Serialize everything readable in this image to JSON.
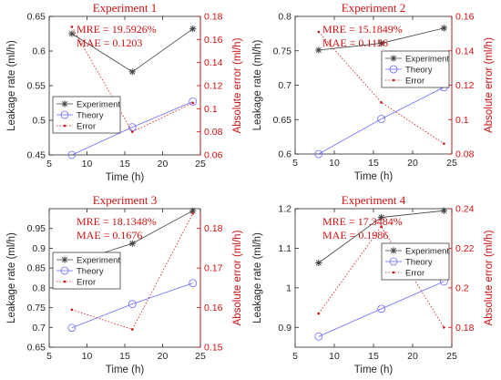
{
  "colors": {
    "experiment": "#404040",
    "theory": "#6a6aff",
    "error": "#d01010",
    "title": "#d01010",
    "axis": "#262626"
  },
  "chart_data": [
    {
      "type": "line",
      "title": "Experiment 1",
      "xlabel": "Time (h)",
      "ylabel": "Leakage rate (ml/h)",
      "y2label": "Absolute error (ml/h)",
      "x": [
        8,
        16,
        24
      ],
      "xlim": [
        5,
        25
      ],
      "xticks": [
        "5",
        "10",
        "15",
        "20",
        "25"
      ],
      "ylim": [
        0.45,
        0.65
      ],
      "yticks": [
        "0.45",
        "0.5",
        "0.55",
        "0.6",
        "0.65"
      ],
      "y2lim": [
        0.06,
        0.18
      ],
      "y2ticks": [
        "0.06",
        "0.08",
        "0.1",
        "0.12",
        "0.14",
        "0.16",
        "0.18"
      ],
      "series": [
        {
          "name": "Experiment",
          "axis": "left",
          "values": [
            0.625,
            0.57,
            0.632
          ]
        },
        {
          "name": "Theory",
          "axis": "left",
          "values": [
            0.45,
            0.49,
            0.527
          ]
        },
        {
          "name": "Error",
          "axis": "right",
          "values": [
            0.171,
            0.08,
            0.105
          ]
        }
      ],
      "annotations": {
        "mre": "MRE = 19.5926%",
        "mae": "MAE = 0.1203"
      },
      "legend": "bottom-left"
    },
    {
      "type": "line",
      "title": "Experiment 2",
      "xlabel": "Time (h)",
      "ylabel": "Leakage rate (ml/h)",
      "y2label": "Absolute error (ml/h)",
      "x": [
        8,
        16,
        24
      ],
      "xlim": [
        5,
        25
      ],
      "xticks": [
        "5",
        "10",
        "15",
        "20",
        "25"
      ],
      "ylim": [
        0.6,
        0.8
      ],
      "yticks": [
        "0.6",
        "0.65",
        "0.7",
        "0.75",
        "0.8"
      ],
      "y2lim": [
        0.08,
        0.16
      ],
      "y2ticks": [
        "0.08",
        "0.1",
        "0.12",
        "0.14",
        "0.16"
      ],
      "series": [
        {
          "name": "Experiment",
          "axis": "left",
          "values": [
            0.751,
            0.761,
            0.783
          ]
        },
        {
          "name": "Theory",
          "axis": "left",
          "values": [
            0.6,
            0.651,
            0.697
          ]
        },
        {
          "name": "Error",
          "axis": "right",
          "values": [
            0.151,
            0.11,
            0.086
          ]
        }
      ],
      "annotations": {
        "mre": "MRE = 15.1849%",
        "mae": "MAE = 0.1156"
      },
      "legend": "top-right"
    },
    {
      "type": "line",
      "title": "Experiment 3",
      "xlabel": "Time (h)",
      "ylabel": "Leakage rate (ml/h)",
      "y2label": "Absolute error (ml/h)",
      "x": [
        8,
        16,
        24
      ],
      "xlim": [
        5,
        25
      ],
      "xticks": [
        "5",
        "10",
        "15",
        "20",
        "25"
      ],
      "ylim": [
        0.65,
        1.0
      ],
      "yticks": [
        "0.65",
        "0.7",
        "0.75",
        "0.8",
        "0.85",
        "0.9",
        "0.95"
      ],
      "y2lim": [
        0.15,
        0.185
      ],
      "y2ticks": [
        "0.15",
        "0.16",
        "0.17",
        "0.18"
      ],
      "series": [
        {
          "name": "Experiment",
          "axis": "left",
          "values": [
            0.863,
            0.912,
            0.995
          ]
        },
        {
          "name": "Theory",
          "axis": "left",
          "values": [
            0.699,
            0.759,
            0.812
          ]
        },
        {
          "name": "Error",
          "axis": "right",
          "values": [
            0.1595,
            0.1545,
            0.1838
          ]
        }
      ],
      "annotations": {
        "mre": "MRE = 18.1348%",
        "mae": "MAE = 0.1676"
      },
      "legend": "top-left"
    },
    {
      "type": "line",
      "title": "Experiment 4",
      "xlabel": "Time (h)",
      "ylabel": "Leakage rate (ml/h)",
      "y2label": "Absolute error (ml/h)",
      "x": [
        8,
        16,
        24
      ],
      "xlim": [
        5,
        25
      ],
      "xticks": [
        "5",
        "10",
        "15",
        "20",
        "25"
      ],
      "ylim": [
        0.85,
        1.2
      ],
      "yticks": [
        "0.9",
        "1",
        "1.1",
        "1.2"
      ],
      "y2lim": [
        0.17,
        0.24
      ],
      "y2ticks": [
        "0.18",
        "0.2",
        "0.22",
        "0.24"
      ],
      "series": [
        {
          "name": "Experiment",
          "axis": "left",
          "values": [
            1.063,
            1.178,
            1.195
          ]
        },
        {
          "name": "Theory",
          "axis": "left",
          "values": [
            0.877,
            0.947,
            1.016
          ]
        },
        {
          "name": "Error",
          "axis": "right",
          "values": [
            0.187,
            0.231,
            0.18
          ]
        }
      ],
      "annotations": {
        "mre": "MRE = 17.3484%",
        "mae": "MAE = 0.1986"
      },
      "legend": "top-right"
    }
  ]
}
